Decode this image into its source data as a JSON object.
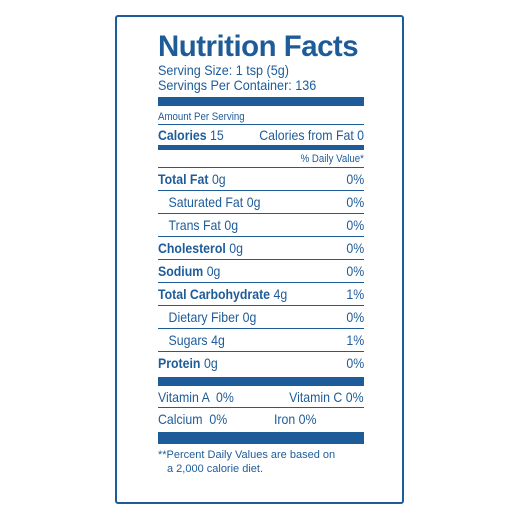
{
  "label": {
    "title": "Nutrition Facts",
    "serving_size": "Serving Size: 1 tsp (5g)",
    "servings_per_container": "Servings Per Container: 136",
    "amount_per_serving": "Amount Per Serving",
    "calories": {
      "label": "Calories",
      "value": "15",
      "from_fat": "Calories from Fat 0"
    },
    "daily_value_header": "% Daily Value*",
    "nutrients": [
      {
        "name": "Total Fat",
        "amount": "0g",
        "dv": "0%"
      },
      {
        "name": "Saturated Fat",
        "amount": "0g",
        "dv": "0%"
      },
      {
        "name": "Trans Fat",
        "amount": "0g",
        "dv": "0%"
      },
      {
        "name": "Cholesterol",
        "amount": "0g",
        "dv": "0%"
      },
      {
        "name": "Sodium",
        "amount": "0g",
        "dv": "0%"
      },
      {
        "name": "Total Carbohydrate",
        "amount": "4g",
        "dv": "1%"
      },
      {
        "name": "Dietary Fiber",
        "amount": "0g",
        "dv": "0%"
      },
      {
        "name": "Sugars",
        "amount": "4g",
        "dv": "1%"
      },
      {
        "name": "Protein",
        "amount": "0g",
        "dv": "0%"
      }
    ],
    "vitamins": {
      "vitamin_a": "Vitamin A  0%",
      "vitamin_c": "Vitamin C 0%",
      "calcium": "Calcium  0%",
      "iron": "Iron 0%"
    },
    "footnote_line1": "**Percent Daily Values are based on",
    "footnote_line2": "a 2,000 calorie diet."
  },
  "colors": {
    "ink": "#1e5c99",
    "background": "#ffffff"
  }
}
